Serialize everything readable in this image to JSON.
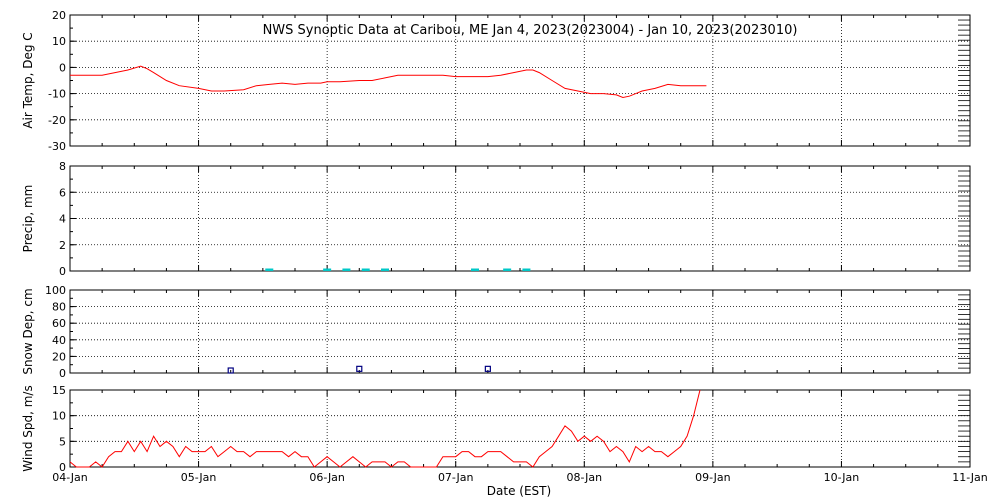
{
  "title": "NWS Synoptic Data at Caribou, ME   Jan  4, 2023(2023004) - Jan 10, 2023(2023010)",
  "xlabel": "Date (EST)",
  "colors": {
    "temp": "#ff0000",
    "precip": "#00c8c8",
    "snow": "#000080",
    "wind": "#ff0000",
    "axis": "#000000"
  },
  "chart_data": [
    {
      "type": "line",
      "name": "air_temp",
      "ylabel": "Air Temp, Deg C",
      "ylim": [
        -30,
        20
      ],
      "yticks": [
        20,
        10,
        0,
        -10,
        -20,
        -30
      ],
      "xlim": [
        0,
        7
      ],
      "grid": true,
      "x": [
        0,
        0.25,
        0.35,
        0.45,
        0.55,
        0.6,
        0.65,
        0.75,
        0.85,
        1.0,
        1.1,
        1.2,
        1.35,
        1.45,
        1.55,
        1.65,
        1.75,
        1.85,
        1.95,
        2.0,
        2.1,
        2.25,
        2.35,
        2.45,
        2.55,
        2.6,
        2.7,
        2.8,
        2.9,
        3.0,
        3.1,
        3.25,
        3.35,
        3.45,
        3.55,
        3.6,
        3.65,
        3.75,
        3.85,
        3.95,
        4.05,
        4.15,
        4.25,
        4.3,
        4.35,
        4.45,
        4.55,
        4.65,
        4.75,
        4.85,
        4.95
      ],
      "y": [
        -3,
        -3,
        -2,
        -1,
        0.5,
        -0.5,
        -2,
        -5,
        -7,
        -8,
        -9,
        -9,
        -8.5,
        -7,
        -6.5,
        -6,
        -6.5,
        -6,
        -6,
        -5.5,
        -5.5,
        -5,
        -5,
        -4,
        -3,
        -3,
        -3,
        -3,
        -3,
        -3.5,
        -3.5,
        -3.5,
        -3,
        -2,
        -1,
        -1,
        -2,
        -5,
        -8,
        -9,
        -10,
        -10,
        -10.5,
        -11.5,
        -11,
        -9,
        -8,
        -6.5,
        -7,
        -7,
        -7
      ]
    },
    {
      "type": "bar",
      "name": "precip",
      "ylabel": "Precip, mm",
      "ylim": [
        0,
        8
      ],
      "yticks": [
        0,
        2,
        4,
        6,
        8
      ],
      "xlim": [
        0,
        7
      ],
      "grid": true,
      "x": [
        1.55,
        2.0,
        2.15,
        2.3,
        2.45,
        3.15,
        3.4,
        3.55
      ],
      "values": [
        0.1,
        0.1,
        0.1,
        0.1,
        0.1,
        0.1,
        0.1,
        0.1
      ]
    },
    {
      "type": "scatter",
      "name": "snow_depth",
      "ylabel": "Snow Dep, cm",
      "ylim": [
        0,
        100
      ],
      "yticks": [
        0,
        20,
        40,
        60,
        80,
        100
      ],
      "yminor_ticks": [
        10,
        30,
        50,
        70,
        90
      ],
      "xlim": [
        0,
        7
      ],
      "grid": true,
      "x": [
        1.25,
        2.25,
        3.25
      ],
      "y": [
        3,
        5,
        5
      ]
    },
    {
      "type": "line",
      "name": "wind_speed",
      "ylabel": "Wind Spd, m/s",
      "ylim": [
        0,
        15
      ],
      "yticks": [
        0,
        5,
        10,
        15
      ],
      "xlim": [
        0,
        7
      ],
      "xticks": [
        "04-Jan",
        "05-Jan",
        "06-Jan",
        "07-Jan",
        "08-Jan",
        "09-Jan",
        "10-Jan",
        "11-Jan"
      ],
      "grid": true,
      "x": [
        0,
        0.05,
        0.1,
        0.15,
        0.2,
        0.25,
        0.3,
        0.35,
        0.4,
        0.45,
        0.5,
        0.55,
        0.6,
        0.65,
        0.7,
        0.75,
        0.8,
        0.85,
        0.9,
        0.95,
        1.0,
        1.05,
        1.1,
        1.15,
        1.2,
        1.25,
        1.3,
        1.35,
        1.4,
        1.45,
        1.5,
        1.55,
        1.6,
        1.65,
        1.7,
        1.75,
        1.8,
        1.85,
        1.9,
        1.95,
        2.0,
        2.05,
        2.1,
        2.15,
        2.2,
        2.25,
        2.3,
        2.35,
        2.4,
        2.45,
        2.5,
        2.55,
        2.6,
        2.65,
        2.7,
        2.75,
        2.8,
        2.85,
        2.9,
        2.95,
        3.0,
        3.05,
        3.1,
        3.15,
        3.2,
        3.25,
        3.3,
        3.35,
        3.4,
        3.45,
        3.5,
        3.55,
        3.6,
        3.65,
        3.7,
        3.75,
        3.8,
        3.85,
        3.9,
        3.95,
        4.0,
        4.05,
        4.1,
        4.15,
        4.2,
        4.25,
        4.3,
        4.35,
        4.4,
        4.45,
        4.5,
        4.55,
        4.6,
        4.65,
        4.7,
        4.75,
        4.8,
        4.85,
        4.9
      ],
      "y": [
        1,
        0,
        0,
        0,
        1,
        0,
        2,
        3,
        3,
        5,
        3,
        5,
        3,
        6,
        4,
        5,
        4,
        2,
        4,
        3,
        3,
        3,
        4,
        2,
        3,
        4,
        3,
        3,
        2,
        3,
        3,
        3,
        3,
        3,
        2,
        3,
        2,
        2,
        0,
        1,
        2,
        1,
        0,
        1,
        2,
        1,
        0,
        1,
        1,
        1,
        0,
        1,
        1,
        0,
        0,
        0,
        0,
        0,
        2,
        2,
        2,
        3,
        3,
        2,
        2,
        3,
        3,
        3,
        2,
        1,
        1,
        1,
        0,
        2,
        3,
        4,
        6,
        8,
        7,
        5,
        6,
        5,
        6,
        5,
        3,
        4,
        3,
        1,
        4,
        3,
        4,
        3,
        3,
        2,
        3,
        4,
        6,
        10,
        15
      ]
    }
  ]
}
